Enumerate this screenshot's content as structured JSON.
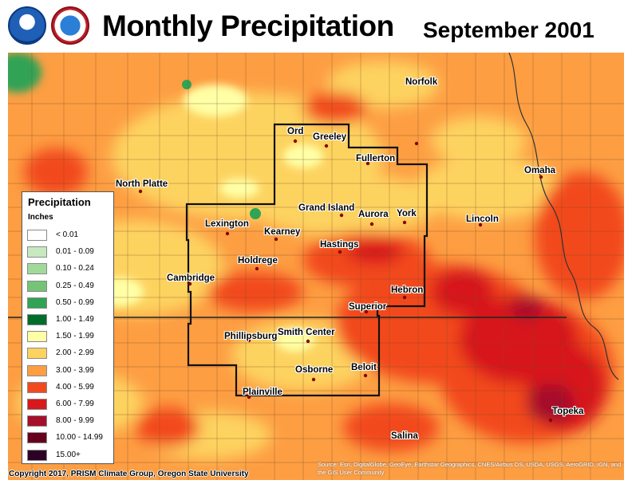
{
  "header": {
    "title": "Monthly Precipitation",
    "subtitle": "September 2001",
    "logos": [
      "noaa-logo",
      "nws-logo"
    ]
  },
  "legend": {
    "title": "Precipitation",
    "unit": "Inches",
    "items": [
      {
        "label": "< 0.01",
        "color": "#ffffff"
      },
      {
        "label": "0.01 - 0.09",
        "color": "#c7e9c0"
      },
      {
        "label": "0.10 - 0.24",
        "color": "#a1d99b"
      },
      {
        "label": "0.25 - 0.49",
        "color": "#74c476"
      },
      {
        "label": "0.50 - 0.99",
        "color": "#31a354"
      },
      {
        "label": "1.00 - 1.49",
        "color": "#006d2c"
      },
      {
        "label": "1.50 - 1.99",
        "color": "#ffffa6"
      },
      {
        "label": "2.00 - 2.99",
        "color": "#fdd360"
      },
      {
        "label": "3.00 - 3.99",
        "color": "#fd9e43"
      },
      {
        "label": "4.00 - 5.99",
        "color": "#f24a1f"
      },
      {
        "label": "6.00 - 7.99",
        "color": "#d7191c"
      },
      {
        "label": "8.00 - 9.99",
        "color": "#a50f2a"
      },
      {
        "label": "10.00 - 14.99",
        "color": "#67001f"
      },
      {
        "label": "15.00+",
        "color": "#2d0026"
      }
    ]
  },
  "places": [
    {
      "name": "Ord"
    },
    {
      "name": "Greeley"
    },
    {
      "name": "Norfolk"
    },
    {
      "name": "Fullerton"
    },
    {
      "name": "Omaha"
    },
    {
      "name": "North Platte"
    },
    {
      "name": "Grand Island"
    },
    {
      "name": "Aurora"
    },
    {
      "name": "York"
    },
    {
      "name": "Lincoln"
    },
    {
      "name": "Lexington"
    },
    {
      "name": "Kearney"
    },
    {
      "name": "Hastings"
    },
    {
      "name": "Holdrege"
    },
    {
      "name": "Cambridge"
    },
    {
      "name": "Hebron"
    },
    {
      "name": "Superior"
    },
    {
      "name": "Phillipsburg"
    },
    {
      "name": "Smith Center"
    },
    {
      "name": "Osborne"
    },
    {
      "name": "Beloit"
    },
    {
      "name": "Plainville"
    },
    {
      "name": "Topeka"
    },
    {
      "name": "Salina"
    }
  ],
  "footer": {
    "copyright": "Copyright 2017, PRISM Climate Group, Oregon State University",
    "attribution": "Source: Esri, DigitalGlobe, GeoEye, Earthstar Geographics, CNES/Airbus DS, USDA, USGS, AeroGRID, IGN, and the GIS User Community"
  }
}
